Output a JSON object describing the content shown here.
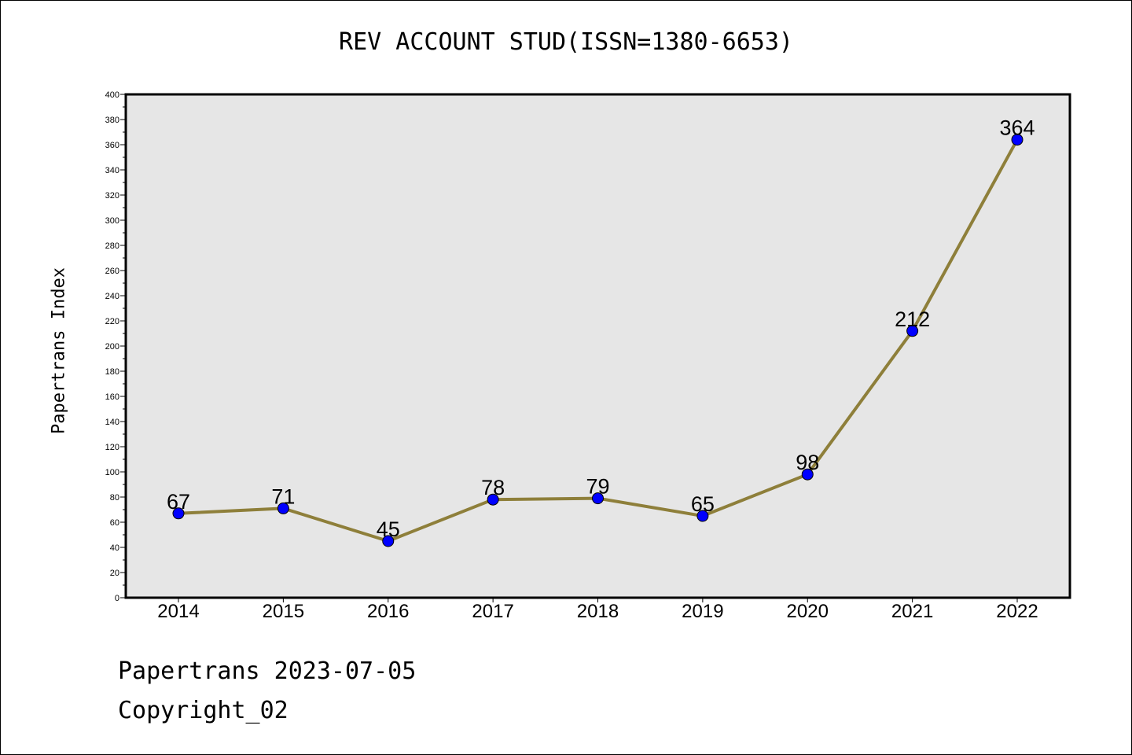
{
  "chart_data": {
    "type": "line",
    "title": "REV ACCOUNT STUD(ISSN=1380-6653)",
    "xlabel": "",
    "ylabel": "Papertrans Index",
    "categories": [
      "2014",
      "2015",
      "2016",
      "2017",
      "2018",
      "2019",
      "2020",
      "2021",
      "2022"
    ],
    "series": [
      {
        "values": [
          67,
          71,
          45,
          78,
          79,
          65,
          98,
          212,
          364
        ]
      }
    ],
    "data_labels": [
      "67",
      "71",
      "45",
      "78",
      "79",
      "65",
      "98",
      "212",
      "364"
    ],
    "ylim": [
      0,
      400
    ],
    "yticks": [
      0,
      20,
      40,
      60,
      80,
      100,
      120,
      140,
      160,
      180,
      200,
      220,
      240,
      260,
      280,
      300,
      320,
      340,
      360,
      380,
      400
    ],
    "grid": false,
    "colors": {
      "line": "#8e7f3a",
      "marker": "#0000ff",
      "plot_bg": "#e6e6e6"
    }
  },
  "footer": {
    "line1": "Papertrans 2023-07-05",
    "line2": "Copyright_02"
  }
}
